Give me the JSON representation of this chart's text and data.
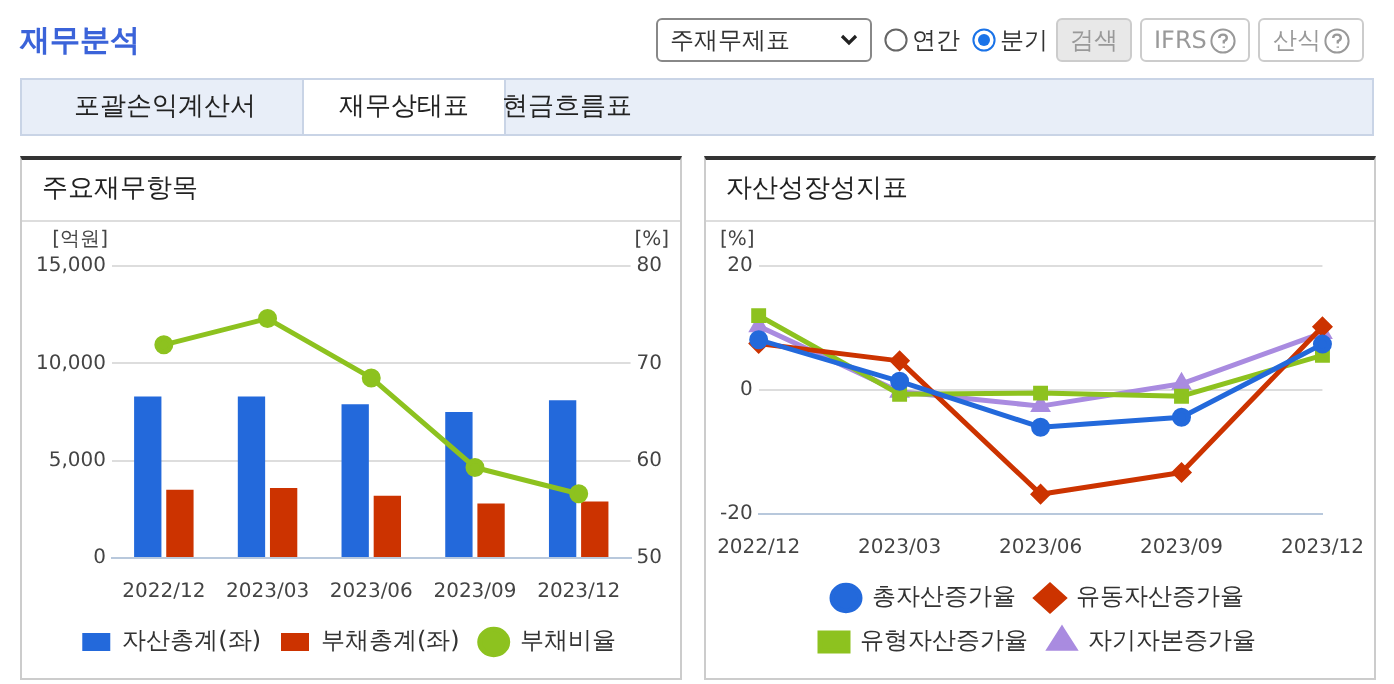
{
  "chart_data": [
    {
      "type": "other",
      "title": "재무분석",
      "annotations": [
        "주재무제표",
        "연간",
        "분기",
        "검색",
        "IFRS",
        "산식",
        "포괄손익계산서",
        "재무상태표",
        "현금흐름표"
      ]
    },
    {
      "type": "bar",
      "title": "주요재무항목",
      "ylabel": "[억원]",
      "y2label": "[%]",
      "categories": [
        "2022/12",
        "2023/03",
        "2023/06",
        "2023/09",
        "2023/12"
      ],
      "series": [
        {
          "name": "자산총계(좌)",
          "color": "#2369db",
          "values": [
            8300,
            8300,
            7900,
            7500,
            8100
          ]
        },
        {
          "name": "부채총계(좌)",
          "color": "#cc3300",
          "values": [
            3500,
            3600,
            3200,
            2800,
            2900
          ]
        },
        {
          "name": "부채비율",
          "type": "line",
          "axis": "y2",
          "color": "#8dc21f",
          "marker": "circle",
          "values": [
            71.9,
            74.6,
            68.5,
            59.3,
            56.6
          ]
        }
      ],
      "ylim": [
        0,
        15000
      ],
      "yticks": [
        0,
        {
          "value": 5000,
          "label": "5,000"
        },
        {
          "value": 10000,
          "label": "10,000"
        },
        {
          "value": 15000,
          "label": "15,000"
        }
      ],
      "y2lim": [
        50,
        80
      ],
      "y2ticks": [
        50,
        60,
        70,
        80
      ],
      "grid": "y",
      "legend": "bottom"
    },
    {
      "type": "line",
      "title": "자산성장성지표",
      "ylabel": "[%]",
      "categories": [
        "2022/12",
        "2023/03",
        "2023/06",
        "2023/09",
        "2023/12"
      ],
      "series": [
        {
          "name": "총자산증가율",
          "color": "#2369db",
          "marker": "circle",
          "values": [
            8.1,
            1.4,
            -6.0,
            -4.4,
            7.4
          ]
        },
        {
          "name": "유동자산증가율",
          "color": "#cc3300",
          "marker": "diamond",
          "values": [
            7.5,
            4.7,
            -16.8,
            -13.3,
            10.2
          ]
        },
        {
          "name": "유형자산증가율",
          "color": "#8dc21f",
          "marker": "square",
          "values": [
            12.0,
            -0.7,
            -0.5,
            -1.0,
            5.6
          ]
        },
        {
          "name": "자기자본증가율",
          "color": "#a98be0",
          "marker": "triangle",
          "values": [
            10.3,
            -0.3,
            -2.6,
            1.0,
            9.2
          ]
        }
      ],
      "ylim": [
        -20,
        20
      ],
      "yticks": [
        -20,
        0,
        20
      ],
      "grid": "y",
      "legend": "bottom"
    }
  ]
}
